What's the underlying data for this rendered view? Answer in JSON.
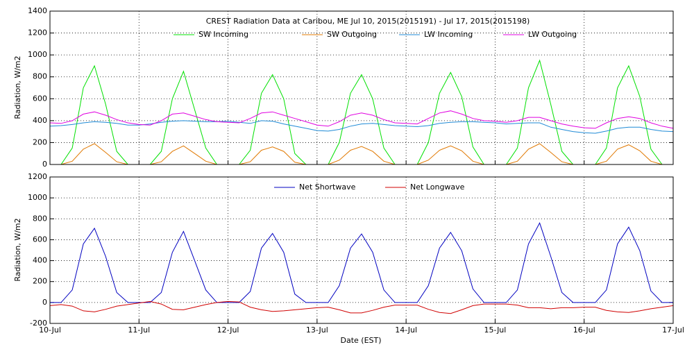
{
  "chart_data": [
    {
      "type": "line",
      "title": "CREST Radiation Data at Caribou, ME   Jul 10, 2015(2015191) - Jul 17, 2015(2015198)",
      "y_label": "Radiation, W/m2",
      "x": [
        0,
        3,
        6,
        9,
        12,
        15,
        18,
        21,
        24,
        27,
        30,
        33,
        36,
        39,
        42,
        45,
        48,
        51,
        54,
        57,
        60,
        63,
        66,
        69,
        72,
        75,
        78,
        81,
        84,
        87,
        90,
        93,
        96,
        99,
        102,
        105,
        108,
        111,
        114,
        117,
        120,
        123,
        126,
        129,
        132,
        135,
        138,
        141,
        144,
        147,
        150,
        153,
        156,
        159,
        162,
        165,
        168
      ],
      "xlim": [
        0,
        168
      ],
      "ylim": [
        0,
        1400
      ],
      "yticks": [
        0,
        200,
        400,
        600,
        800,
        1000,
        1200,
        1400
      ],
      "grid": true,
      "series": [
        {
          "name": "SW Incoming",
          "color": "#00e000",
          "values": [
            0,
            0,
            150,
            700,
            900,
            550,
            120,
            0,
            0,
            0,
            120,
            600,
            850,
            500,
            150,
            0,
            0,
            0,
            130,
            650,
            820,
            600,
            100,
            0,
            0,
            0,
            200,
            650,
            820,
            600,
            150,
            0,
            0,
            0,
            200,
            650,
            840,
            620,
            160,
            0,
            0,
            0,
            150,
            700,
            950,
            550,
            120,
            0,
            0,
            0,
            150,
            700,
            900,
            620,
            140,
            0,
            0
          ]
        },
        {
          "name": "SW Outgoing",
          "color": "#e07800",
          "values": [
            0,
            0,
            30,
            140,
            190,
            110,
            25,
            0,
            0,
            0,
            25,
            120,
            170,
            100,
            30,
            0,
            0,
            0,
            25,
            130,
            160,
            120,
            20,
            0,
            0,
            0,
            40,
            130,
            165,
            120,
            30,
            0,
            0,
            0,
            40,
            130,
            170,
            125,
            30,
            0,
            0,
            0,
            30,
            140,
            190,
            110,
            25,
            0,
            0,
            0,
            30,
            140,
            180,
            125,
            30,
            0,
            0
          ]
        },
        {
          "name": "LW Incoming",
          "color": "#1e8ad6",
          "values": [
            350,
            355,
            365,
            380,
            390,
            385,
            375,
            360,
            360,
            370,
            385,
            395,
            400,
            395,
            390,
            390,
            395,
            385,
            375,
            400,
            395,
            370,
            350,
            330,
            310,
            305,
            320,
            350,
            370,
            375,
            365,
            355,
            350,
            345,
            355,
            375,
            385,
            390,
            390,
            385,
            380,
            370,
            375,
            380,
            380,
            340,
            320,
            300,
            290,
            285,
            305,
            330,
            340,
            340,
            320,
            305,
            300
          ]
        },
        {
          "name": "LW Outgoing",
          "color": "#e000e0",
          "values": [
            380,
            375,
            400,
            460,
            480,
            450,
            410,
            380,
            365,
            360,
            400,
            460,
            470,
            440,
            410,
            390,
            385,
            380,
            420,
            470,
            480,
            450,
            420,
            390,
            360,
            350,
            390,
            450,
            470,
            450,
            410,
            380,
            375,
            370,
            420,
            470,
            490,
            460,
            420,
            400,
            395,
            385,
            400,
            430,
            430,
            400,
            370,
            350,
            335,
            330,
            380,
            420,
            435,
            420,
            380,
            350,
            330
          ]
        }
      ]
    },
    {
      "type": "line",
      "x_label": "Date (EST)",
      "y_label": "Radiation, W/m2",
      "x": [
        0,
        3,
        6,
        9,
        12,
        15,
        18,
        21,
        24,
        27,
        30,
        33,
        36,
        39,
        42,
        45,
        48,
        51,
        54,
        57,
        60,
        63,
        66,
        69,
        72,
        75,
        78,
        81,
        84,
        87,
        90,
        93,
        96,
        99,
        102,
        105,
        108,
        111,
        114,
        117,
        120,
        123,
        126,
        129,
        132,
        135,
        138,
        141,
        144,
        147,
        150,
        153,
        156,
        159,
        162,
        165,
        168
      ],
      "xlim": [
        0,
        168
      ],
      "xticks": [
        {
          "value": 0,
          "label": "10-Jul"
        },
        {
          "value": 24,
          "label": "11-Jul"
        },
        {
          "value": 48,
          "label": "12-Jul"
        },
        {
          "value": 72,
          "label": "13-Jul"
        },
        {
          "value": 96,
          "label": "14-Jul"
        },
        {
          "value": 120,
          "label": "15-Jul"
        },
        {
          "value": 144,
          "label": "16-Jul"
        },
        {
          "value": 168,
          "label": "17-Jul"
        }
      ],
      "ylim": [
        -200,
        1200
      ],
      "yticks": [
        -200,
        0,
        200,
        400,
        600,
        800,
        1000,
        1200
      ],
      "grid": true,
      "series": [
        {
          "name": "Net Shortwave",
          "color": "#0000c0",
          "values": [
            0,
            0,
            120,
            560,
            710,
            440,
            95,
            0,
            0,
            0,
            95,
            480,
            680,
            400,
            120,
            0,
            0,
            0,
            105,
            520,
            660,
            480,
            80,
            0,
            0,
            0,
            160,
            520,
            655,
            480,
            120,
            0,
            0,
            0,
            160,
            520,
            670,
            495,
            130,
            0,
            0,
            0,
            120,
            560,
            760,
            440,
            95,
            0,
            0,
            0,
            120,
            560,
            720,
            495,
            110,
            0,
            0
          ]
        },
        {
          "name": "Net Longwave",
          "color": "#d00000",
          "values": [
            -30,
            -20,
            -35,
            -80,
            -90,
            -65,
            -35,
            -20,
            -5,
            10,
            -15,
            -65,
            -70,
            -45,
            -20,
            0,
            10,
            5,
            -45,
            -70,
            -85,
            -80,
            -70,
            -60,
            -50,
            -45,
            -70,
            -100,
            -100,
            -75,
            -45,
            -25,
            -25,
            -25,
            -65,
            -95,
            -105,
            -70,
            -30,
            -15,
            -15,
            -15,
            -25,
            -50,
            -50,
            -60,
            -50,
            -50,
            -45,
            -45,
            -75,
            -90,
            -95,
            -80,
            -60,
            -45,
            -30
          ]
        }
      ]
    }
  ]
}
